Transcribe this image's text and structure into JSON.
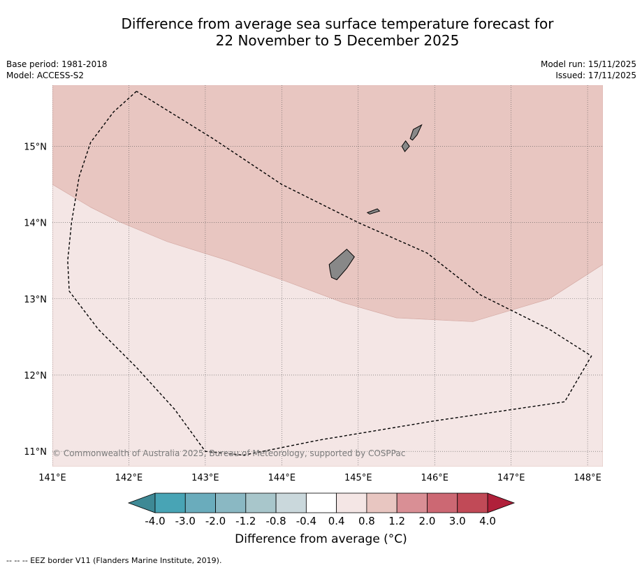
{
  "title": {
    "line1": "Difference from average sea surface temperature forecast for",
    "line2": "22 November to 5 December 2025"
  },
  "meta_left": {
    "base_period": "Base period: 1981-2018",
    "model": "Model: ACCESS-S2"
  },
  "meta_right": {
    "model_run": "Model run: 15/11/2025",
    "issued": "Issued: 17/11/2025"
  },
  "map": {
    "lon_ticks": [
      {
        "value": 141,
        "label": "141°E"
      },
      {
        "value": 142,
        "label": "142°E"
      },
      {
        "value": 143,
        "label": "143°E"
      },
      {
        "value": 144,
        "label": "144°E"
      },
      {
        "value": 145,
        "label": "145°E"
      },
      {
        "value": 146,
        "label": "146°E"
      },
      {
        "value": 147,
        "label": "147°E"
      },
      {
        "value": 148,
        "label": "148°E"
      }
    ],
    "lat_ticks": [
      {
        "value": 15,
        "label": "15°N"
      },
      {
        "value": 14,
        "label": "14°N"
      },
      {
        "value": 13,
        "label": "13°N"
      },
      {
        "value": 12,
        "label": "12°N"
      },
      {
        "value": 11,
        "label": "11°N"
      }
    ],
    "extent": {
      "lon_min": 141.0,
      "lon_max": 148.2,
      "lat_min": 10.8,
      "lat_max": 15.8
    },
    "copyright": "© Commonwealth of Australia 2025, Bureau of Meteorology, supported by COSPPac",
    "regions": [
      {
        "name": "anomaly-0.8-to-1.2",
        "color": "#e8c6c1",
        "coords": [
          [
            141.0,
            15.8
          ],
          [
            148.2,
            15.8
          ],
          [
            148.2,
            13.45
          ],
          [
            147.5,
            13.0
          ],
          [
            146.5,
            12.7
          ],
          [
            145.5,
            12.75
          ],
          [
            144.8,
            12.95
          ],
          [
            144.0,
            13.25
          ],
          [
            143.3,
            13.5
          ],
          [
            142.5,
            13.75
          ],
          [
            141.9,
            14.0
          ],
          [
            141.5,
            14.2
          ],
          [
            141.0,
            14.5
          ]
        ]
      },
      {
        "name": "anomaly-0.4-to-0.8",
        "color": "#f4e6e5",
        "coords": [
          [
            141.0,
            14.5
          ],
          [
            141.5,
            14.2
          ],
          [
            141.9,
            14.0
          ],
          [
            142.5,
            13.75
          ],
          [
            143.3,
            13.5
          ],
          [
            144.0,
            13.25
          ],
          [
            144.8,
            12.95
          ],
          [
            145.5,
            12.75
          ],
          [
            146.5,
            12.7
          ],
          [
            147.5,
            13.0
          ],
          [
            148.2,
            13.45
          ],
          [
            148.2,
            10.8
          ],
          [
            141.0,
            10.8
          ]
        ]
      }
    ],
    "eez_border": [
      [
        142.1,
        15.72
      ],
      [
        141.8,
        15.45
      ],
      [
        141.5,
        15.05
      ],
      [
        141.35,
        14.6
      ],
      [
        141.25,
        14.0
      ],
      [
        141.2,
        13.5
      ],
      [
        141.22,
        13.1
      ],
      [
        141.6,
        12.6
      ],
      [
        142.1,
        12.1
      ],
      [
        142.6,
        11.55
      ],
      [
        143.0,
        11.0
      ],
      [
        143.5,
        10.95
      ],
      [
        144.5,
        11.15
      ],
      [
        146.0,
        11.4
      ],
      [
        147.7,
        11.65
      ],
      [
        148.05,
        12.25
      ],
      [
        147.5,
        12.6
      ],
      [
        146.6,
        13.05
      ],
      [
        145.9,
        13.6
      ],
      [
        145.0,
        14.0
      ],
      [
        144.0,
        14.5
      ],
      [
        143.1,
        15.1
      ],
      [
        142.1,
        15.72
      ]
    ],
    "islands": [
      {
        "name": "guam",
        "coords": [
          [
            144.62,
            13.45
          ],
          [
            144.85,
            13.65
          ],
          [
            144.95,
            13.55
          ],
          [
            144.85,
            13.4
          ],
          [
            144.72,
            13.25
          ],
          [
            144.65,
            13.28
          ],
          [
            144.63,
            13.38
          ]
        ]
      },
      {
        "name": "rota",
        "coords": [
          [
            145.12,
            14.13
          ],
          [
            145.25,
            14.18
          ],
          [
            145.28,
            14.15
          ],
          [
            145.15,
            14.11
          ]
        ]
      },
      {
        "name": "tinian",
        "coords": [
          [
            145.57,
            15.0
          ],
          [
            145.62,
            15.07
          ],
          [
            145.67,
            15.0
          ],
          [
            145.61,
            14.93
          ]
        ]
      },
      {
        "name": "saipan",
        "coords": [
          [
            145.68,
            15.1
          ],
          [
            145.72,
            15.22
          ],
          [
            145.83,
            15.28
          ],
          [
            145.77,
            15.15
          ],
          [
            145.71,
            15.08
          ]
        ]
      }
    ]
  },
  "colorbar": {
    "segments": [
      {
        "color": "#48a4b5"
      },
      {
        "color": "#6aacbc"
      },
      {
        "color": "#8ab8c3"
      },
      {
        "color": "#a8c6cb"
      },
      {
        "color": "#cad8dc"
      },
      {
        "color": "#ffffff"
      },
      {
        "color": "#f4e6e5"
      },
      {
        "color": "#e8c6c1"
      },
      {
        "color": "#d98f95"
      },
      {
        "color": "#cc6873"
      },
      {
        "color": "#c14a57"
      }
    ],
    "low_extend_color": "#3e8995",
    "high_extend_color": "#b0203a",
    "tick_labels": [
      "-4.0",
      "-3.0",
      "-2.0",
      "-1.2",
      "-0.8",
      "-0.4",
      "0.4",
      "0.8",
      "1.2",
      "2.0",
      "3.0",
      "4.0"
    ],
    "title": "Difference from average (°C)"
  },
  "footer": {
    "legend_text": "--  --  -- EEZ border V11 (Flanders Marine Institute, 2019)."
  }
}
